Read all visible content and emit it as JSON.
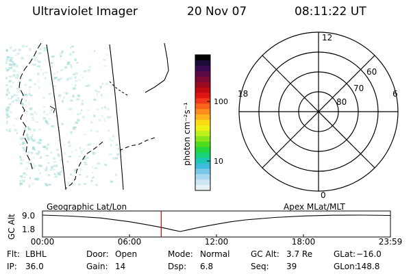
{
  "header": {
    "instrument": "Ultraviolet Imager",
    "date": "20 Nov 07",
    "time": "08:11:22 UT"
  },
  "left_map": {
    "label": "Geographic Lat/Lon"
  },
  "colorbar": {
    "label": "photon cm⁻²s⁻¹",
    "ticks": [
      "100",
      "10"
    ],
    "colors": [
      "#000000",
      "#1c0a38",
      "#3a0a4e",
      "#5a0a46",
      "#7a0a34",
      "#9a0a22",
      "#c00a14",
      "#e01616",
      "#f23a1a",
      "#f7641c",
      "#fb8c1e",
      "#fdb41c",
      "#fedc14",
      "#eef218",
      "#bef01a",
      "#8ae61a",
      "#50dc1c",
      "#22d63c",
      "#18d27a",
      "#1ec8b6",
      "#3cbcdc",
      "#78c8e6",
      "#aad8ee",
      "#cfe6f2",
      "#e6f0f6"
    ]
  },
  "polar_plot": {
    "label": "Apex MLat/MLT",
    "mlt_labels": {
      "top": "12",
      "left": "18",
      "right": "6",
      "bottom": "0"
    },
    "lat_labels": [
      "60",
      "70",
      "80"
    ]
  },
  "chart_data": {
    "type": "line",
    "title": "",
    "xlabel": "",
    "ylabel": "GC Alt",
    "x_tick_labels": [
      "00:00",
      "06:00",
      "12:00",
      "18:00",
      "23:59"
    ],
    "y_tick_labels": [
      "9.0",
      "1.8"
    ],
    "xlim_hours": [
      0,
      24
    ],
    "ylim": [
      1.8,
      9.0
    ],
    "series": [
      {
        "x_hours": [
          0,
          2,
          4,
          6,
          7,
          8,
          8.5,
          9,
          9.5,
          10,
          10.5,
          11,
          12,
          13,
          14,
          16,
          18,
          20,
          22,
          24
        ],
        "values": [
          9.0,
          8.55,
          7.75,
          6.1,
          5.0,
          3.85,
          3.2,
          2.45,
          1.8,
          2.5,
          3.2,
          3.85,
          5.0,
          6.1,
          6.9,
          7.95,
          8.6,
          8.95,
          9.0,
          8.85
        ]
      }
    ],
    "marker_time_hours": 8.19,
    "marker_color": "#cc0000"
  },
  "footer": {
    "rows": [
      [
        {
          "k": "Flt:",
          "v": "LBHL"
        },
        {
          "k": "Door:",
          "v": "Open"
        },
        {
          "k": "Mode:",
          "v": "Normal"
        },
        {
          "k": "GC Alt:",
          "v": "3.7 Re"
        },
        {
          "k": "GLat:",
          "v": "−16.0"
        }
      ],
      [
        {
          "k": "IP:",
          "v": "36.0"
        },
        {
          "k": "Gain:",
          "v": "14"
        },
        {
          "k": "Dsp:",
          "v": "6.8"
        },
        {
          "k": "Seq:",
          "v": "39"
        },
        {
          "k": "GLon:",
          "v": "148.8"
        }
      ]
    ]
  }
}
